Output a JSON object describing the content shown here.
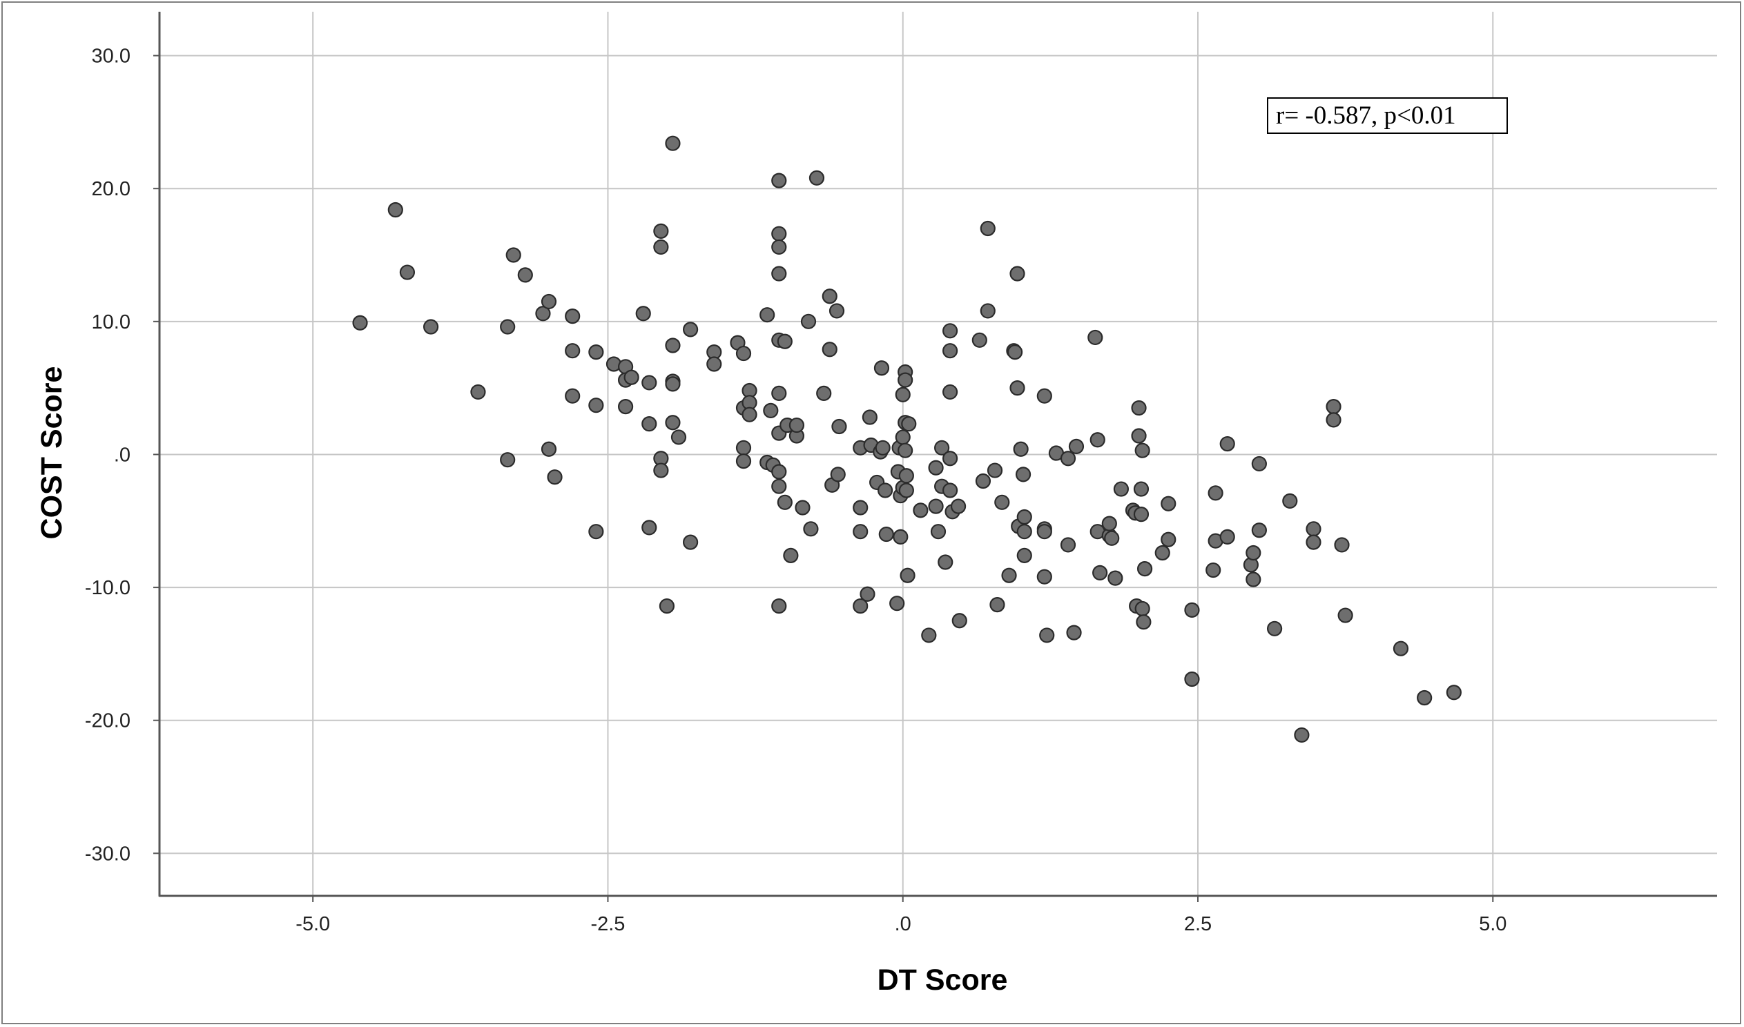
{
  "chart_data": {
    "type": "scatter",
    "xlabel": "DT Score",
    "ylabel": "COST Score",
    "xlim": [
      -6.3,
      6.9
    ],
    "ylim": [
      -33.2,
      33.3
    ],
    "x_ticks": [
      -5.0,
      -2.5,
      0.0,
      2.5,
      5.0
    ],
    "x_tick_labels": [
      "-5.0",
      "-2.5",
      ".0",
      "2.5",
      "5.0"
    ],
    "y_ticks": [
      30.0,
      20.0,
      10.0,
      0.0,
      -10.0,
      -20.0,
      -30.0
    ],
    "y_tick_labels": [
      "30.0",
      "20.0",
      "10.0",
      ".0",
      "-10.0",
      "-20.0",
      "-30.0"
    ],
    "grid": true,
    "annotation": "r= -0.587, p<0.01",
    "colors": {
      "marker_fill": "#6e6e6e",
      "marker_edge": "#2b2b2b",
      "grid": "#c6c6c6",
      "axis": "#555555"
    },
    "series": [
      {
        "points": [
          [
            -4.6,
            9.9
          ],
          [
            -4.3,
            18.4
          ],
          [
            -4.2,
            13.7
          ],
          [
            -4.0,
            9.6
          ],
          [
            -3.6,
            4.7
          ],
          [
            -3.35,
            9.6
          ],
          [
            -3.35,
            -0.4
          ],
          [
            -3.3,
            15.0
          ],
          [
            -3.2,
            13.5
          ],
          [
            -3.05,
            10.6
          ],
          [
            -3.0,
            11.5
          ],
          [
            -3.0,
            0.4
          ],
          [
            -2.95,
            -1.7
          ],
          [
            -2.8,
            10.4
          ],
          [
            -2.8,
            7.8
          ],
          [
            -2.8,
            4.4
          ],
          [
            -2.6,
            7.7
          ],
          [
            -2.6,
            3.7
          ],
          [
            -2.6,
            -5.8
          ],
          [
            -2.45,
            6.8
          ],
          [
            -2.35,
            6.6
          ],
          [
            -2.35,
            5.6
          ],
          [
            -2.35,
            3.6
          ],
          [
            -2.3,
            5.8
          ],
          [
            -2.2,
            10.6
          ],
          [
            -2.15,
            5.4
          ],
          [
            -2.15,
            2.3
          ],
          [
            -2.15,
            -5.5
          ],
          [
            -2.05,
            16.8
          ],
          [
            -2.05,
            15.6
          ],
          [
            -2.05,
            -0.3
          ],
          [
            -2.05,
            -1.2
          ],
          [
            -2.0,
            -11.4
          ],
          [
            -1.95,
            23.4
          ],
          [
            -1.95,
            8.2
          ],
          [
            -1.95,
            5.5
          ],
          [
            -1.95,
            5.3
          ],
          [
            -1.95,
            2.4
          ],
          [
            -1.9,
            1.3
          ],
          [
            -1.8,
            9.4
          ],
          [
            -1.8,
            -6.6
          ],
          [
            -1.6,
            7.7
          ],
          [
            -1.6,
            6.8
          ],
          [
            -1.4,
            8.4
          ],
          [
            -1.35,
            7.6
          ],
          [
            -1.35,
            3.5
          ],
          [
            -1.35,
            0.5
          ],
          [
            -1.35,
            -0.5
          ],
          [
            -1.3,
            4.8
          ],
          [
            -1.3,
            3.9
          ],
          [
            -1.3,
            3.0
          ],
          [
            -1.15,
            10.5
          ],
          [
            -1.15,
            -0.6
          ],
          [
            -1.12,
            3.3
          ],
          [
            -1.1,
            -0.8
          ],
          [
            -1.05,
            20.6
          ],
          [
            -1.05,
            16.6
          ],
          [
            -1.05,
            15.6
          ],
          [
            -1.05,
            13.6
          ],
          [
            -1.05,
            8.6
          ],
          [
            -1.05,
            4.6
          ],
          [
            -1.05,
            1.6
          ],
          [
            -1.05,
            -1.3
          ],
          [
            -1.05,
            -2.4
          ],
          [
            -1.05,
            -11.4
          ],
          [
            -1.0,
            8.5
          ],
          [
            -1.0,
            -3.6
          ],
          [
            -0.98,
            2.2
          ],
          [
            -0.95,
            -7.6
          ],
          [
            -0.9,
            1.4
          ],
          [
            -0.9,
            2.2
          ],
          [
            -0.85,
            -4.0
          ],
          [
            -0.8,
            10.0
          ],
          [
            -0.78,
            -5.6
          ],
          [
            -0.73,
            20.8
          ],
          [
            -0.67,
            4.6
          ],
          [
            -0.62,
            11.9
          ],
          [
            -0.62,
            7.9
          ],
          [
            -0.6,
            -2.3
          ],
          [
            -0.56,
            10.8
          ],
          [
            -0.55,
            -1.5
          ],
          [
            -0.54,
            2.1
          ],
          [
            -0.36,
            0.5
          ],
          [
            -0.36,
            -4.0
          ],
          [
            -0.36,
            -5.8
          ],
          [
            -0.36,
            -11.4
          ],
          [
            -0.3,
            -10.5
          ],
          [
            -0.28,
            2.8
          ],
          [
            -0.27,
            0.7
          ],
          [
            -0.22,
            -2.1
          ],
          [
            -0.19,
            0.2
          ],
          [
            -0.18,
            6.5
          ],
          [
            -0.17,
            0.5
          ],
          [
            -0.15,
            -2.7
          ],
          [
            -0.14,
            -6.0
          ],
          [
            -0.05,
            -11.2
          ],
          [
            -0.04,
            -1.3
          ],
          [
            -0.03,
            0.5
          ],
          [
            -0.02,
            -6.2
          ],
          [
            -0.02,
            -3.1
          ],
          [
            0.0,
            4.5
          ],
          [
            0.0,
            1.3
          ],
          [
            0.0,
            -2.5
          ],
          [
            0.02,
            6.2
          ],
          [
            0.02,
            5.6
          ],
          [
            0.02,
            2.4
          ],
          [
            0.02,
            0.3
          ],
          [
            0.03,
            -1.6
          ],
          [
            0.03,
            -2.7
          ],
          [
            0.04,
            -9.1
          ],
          [
            0.05,
            2.3
          ],
          [
            0.15,
            -4.2
          ],
          [
            0.22,
            -13.6
          ],
          [
            0.28,
            -3.9
          ],
          [
            0.28,
            -1.0
          ],
          [
            0.3,
            -5.8
          ],
          [
            0.33,
            0.5
          ],
          [
            0.33,
            -2.4
          ],
          [
            0.36,
            -8.1
          ],
          [
            0.4,
            9.3
          ],
          [
            0.4,
            7.8
          ],
          [
            0.4,
            4.7
          ],
          [
            0.4,
            -0.3
          ],
          [
            0.4,
            -2.7
          ],
          [
            0.42,
            -4.3
          ],
          [
            0.47,
            -3.9
          ],
          [
            0.48,
            -12.5
          ],
          [
            0.65,
            8.6
          ],
          [
            0.68,
            -2.0
          ],
          [
            0.72,
            17.0
          ],
          [
            0.72,
            10.8
          ],
          [
            0.78,
            -1.2
          ],
          [
            0.8,
            -11.3
          ],
          [
            0.84,
            -3.6
          ],
          [
            0.9,
            -9.1
          ],
          [
            0.94,
            7.8
          ],
          [
            0.95,
            7.7
          ],
          [
            0.97,
            13.6
          ],
          [
            0.97,
            5.0
          ],
          [
            0.98,
            -5.4
          ],
          [
            1.0,
            0.4
          ],
          [
            1.02,
            -1.5
          ],
          [
            1.03,
            -4.7
          ],
          [
            1.03,
            -5.8
          ],
          [
            1.03,
            -7.6
          ],
          [
            1.2,
            4.4
          ],
          [
            1.2,
            -5.6
          ],
          [
            1.2,
            -5.8
          ],
          [
            1.2,
            -9.2
          ],
          [
            1.22,
            -13.6
          ],
          [
            1.3,
            0.1
          ],
          [
            1.4,
            -0.3
          ],
          [
            1.4,
            -6.8
          ],
          [
            1.45,
            -13.4
          ],
          [
            1.47,
            0.6
          ],
          [
            1.63,
            8.8
          ],
          [
            1.65,
            1.1
          ],
          [
            1.65,
            -5.8
          ],
          [
            1.67,
            -8.9
          ],
          [
            1.75,
            -6.1
          ],
          [
            1.75,
            -5.2
          ],
          [
            1.77,
            -6.3
          ],
          [
            1.8,
            -9.3
          ],
          [
            1.85,
            -2.6
          ],
          [
            1.95,
            -4.2
          ],
          [
            1.97,
            -4.4
          ],
          [
            1.98,
            -11.4
          ],
          [
            2.0,
            3.5
          ],
          [
            2.0,
            1.4
          ],
          [
            2.02,
            -4.5
          ],
          [
            2.02,
            -2.6
          ],
          [
            2.03,
            0.3
          ],
          [
            2.03,
            -11.6
          ],
          [
            2.04,
            -12.6
          ],
          [
            2.05,
            -8.6
          ],
          [
            2.2,
            -7.4
          ],
          [
            2.25,
            -6.4
          ],
          [
            2.25,
            -3.7
          ],
          [
            2.45,
            -11.7
          ],
          [
            2.45,
            -16.9
          ],
          [
            2.63,
            -8.7
          ],
          [
            2.65,
            -6.5
          ],
          [
            2.65,
            -2.9
          ],
          [
            2.75,
            0.8
          ],
          [
            2.75,
            -6.2
          ],
          [
            2.95,
            -8.3
          ],
          [
            2.97,
            -7.4
          ],
          [
            2.97,
            -9.4
          ],
          [
            3.02,
            -0.7
          ],
          [
            3.02,
            -5.7
          ],
          [
            3.15,
            -13.1
          ],
          [
            3.28,
            -3.5
          ],
          [
            3.38,
            -21.1
          ],
          [
            3.48,
            -5.6
          ],
          [
            3.48,
            -6.6
          ],
          [
            3.65,
            3.6
          ],
          [
            3.65,
            2.6
          ],
          [
            3.72,
            -6.8
          ],
          [
            3.75,
            -12.1
          ],
          [
            4.22,
            -14.6
          ],
          [
            4.42,
            -18.3
          ],
          [
            4.67,
            -17.9
          ]
        ]
      }
    ]
  }
}
